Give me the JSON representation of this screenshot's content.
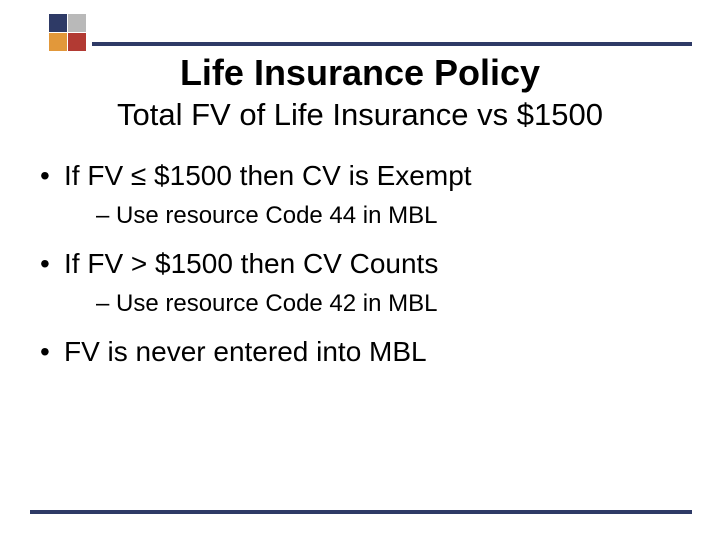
{
  "colors": {
    "navy": "#2e3a66",
    "gray": "#b9b9b9",
    "orange": "#e2983a",
    "red": "#b23a33",
    "background": "#ffffff",
    "text": "#000000"
  },
  "typography": {
    "title_fontsize": 36,
    "subtitle_fontsize": 31,
    "bullet1_fontsize": 28,
    "bullet2_fontsize": 24,
    "font_family": "Arial"
  },
  "title": "Life Insurance Policy",
  "subtitle": "Total FV of Life Insurance vs $1500",
  "bullets": [
    {
      "level": 1,
      "text": "If FV ≤ $1500 then CV is Exempt"
    },
    {
      "level": 2,
      "text": "Use resource Code 44  in MBL"
    },
    {
      "level": 1,
      "text": "If FV > $1500 then CV Counts"
    },
    {
      "level": 2,
      "text": "Use resource Code 42  in MBL"
    },
    {
      "level": 1,
      "text": "FV is never entered into MBL"
    }
  ]
}
